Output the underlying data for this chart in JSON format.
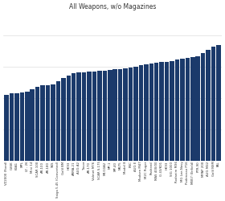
{
  "title": "All Weapons, w/o Magazines",
  "bar_color": "#1B3A6B",
  "categories": [
    "VZ2000 (Fixed)",
    "G36K",
    "K3A1",
    "MPL",
    "IZ - 26",
    "Mini 14",
    "SCAR 100",
    "AR-100",
    "AR-180",
    "SKS",
    "Saiga 5.45 (Converted)",
    "Galil BM",
    "HK93",
    "ARMA-21",
    "AUG A2",
    "Tavor",
    "AR-170",
    "Valmet M76",
    "SCAR S.175",
    "M1/10A2",
    "MP-1",
    "MP-40",
    "M675",
    "Model 8",
    "FNC",
    "AUG E",
    "Madsen M47",
    "M2C Ruger",
    "Rasheed",
    "MAS 400/00",
    "G 43/K01",
    "HK93",
    "SIG 1000",
    "Rodanim M36",
    "MG Lee-Navy",
    "Poderosso P16",
    "MB57 (Enfield)",
    "PTR-90",
    "MPAP 200",
    "AUG M42",
    "Galil NSM",
    "FAL"
  ],
  "values": [
    4.2,
    4.3,
    4.3,
    4.35,
    4.4,
    4.6,
    4.75,
    4.85,
    4.85,
    4.9,
    5.1,
    5.3,
    5.45,
    5.6,
    5.65,
    5.65,
    5.7,
    5.72,
    5.74,
    5.76,
    5.8,
    5.85,
    5.87,
    5.9,
    5.95,
    6.0,
    6.1,
    6.15,
    6.2,
    6.25,
    6.3,
    6.35,
    6.4,
    6.5,
    6.55,
    6.6,
    6.65,
    6.7,
    6.9,
    7.1,
    7.3,
    7.4
  ],
  "ylim": [
    0,
    9.5
  ],
  "background_color": "#ffffff",
  "figsize": [
    2.8,
    2.5
  ],
  "dpi": 100,
  "title_fontsize": 5.5,
  "tick_fontsize": 2.8
}
